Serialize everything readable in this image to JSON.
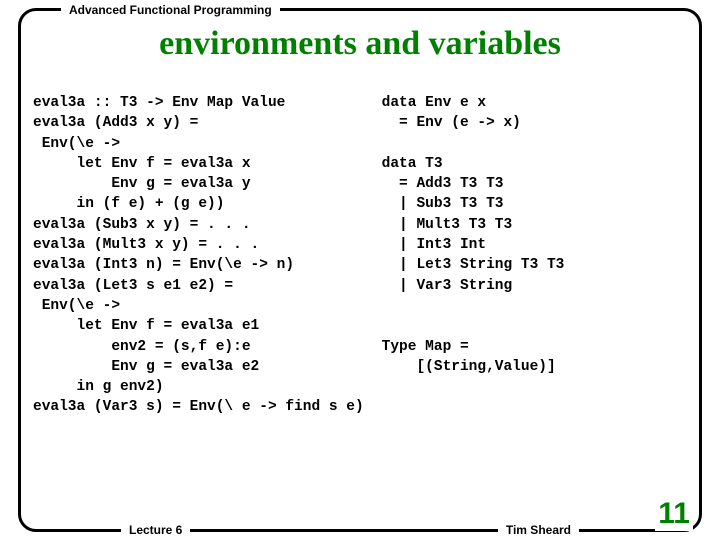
{
  "header": {
    "course": "Advanced Functional Programming"
  },
  "title": "environments and variables",
  "code": {
    "left": "eval3a :: T3 -> Env Map Value\neval3a (Add3 x y) =\n Env(\\e ->\n     let Env f = eval3a x\n         Env g = eval3a y\n     in (f e) + (g e))\neval3a (Sub3 x y) = . . .\neval3a (Mult3 x y) = . . .\neval3a (Int3 n) = Env(\\e -> n)\neval3a (Let3 s e1 e2) =\n Env(\\e ->\n     let Env f = eval3a e1\n         env2 = (s,f e):e\n         Env g = eval3a e2\n     in g env2)\neval3a (Var3 s) = Env(\\ e -> find s e)",
    "right": "data Env e x\n  = Env (e -> x)\n\ndata T3\n  = Add3 T3 T3\n  | Sub3 T3 T3\n  | Mult3 T3 T3\n  | Int3 Int\n  | Let3 String T3 T3\n  | Var3 String\n\n\nType Map =\n    [(String,Value)]"
  },
  "footer": {
    "lecture": "Lecture 6",
    "author": "Tim Sheard",
    "page": "11"
  },
  "colors": {
    "accent": "#008000",
    "border": "#000000",
    "background": "#ffffff"
  },
  "typography": {
    "title_fontsize": 34,
    "code_fontsize": 14.5,
    "footer_fontsize": 12,
    "page_fontsize": 30,
    "code_family": "Courier New",
    "title_family": "Georgia"
  }
}
